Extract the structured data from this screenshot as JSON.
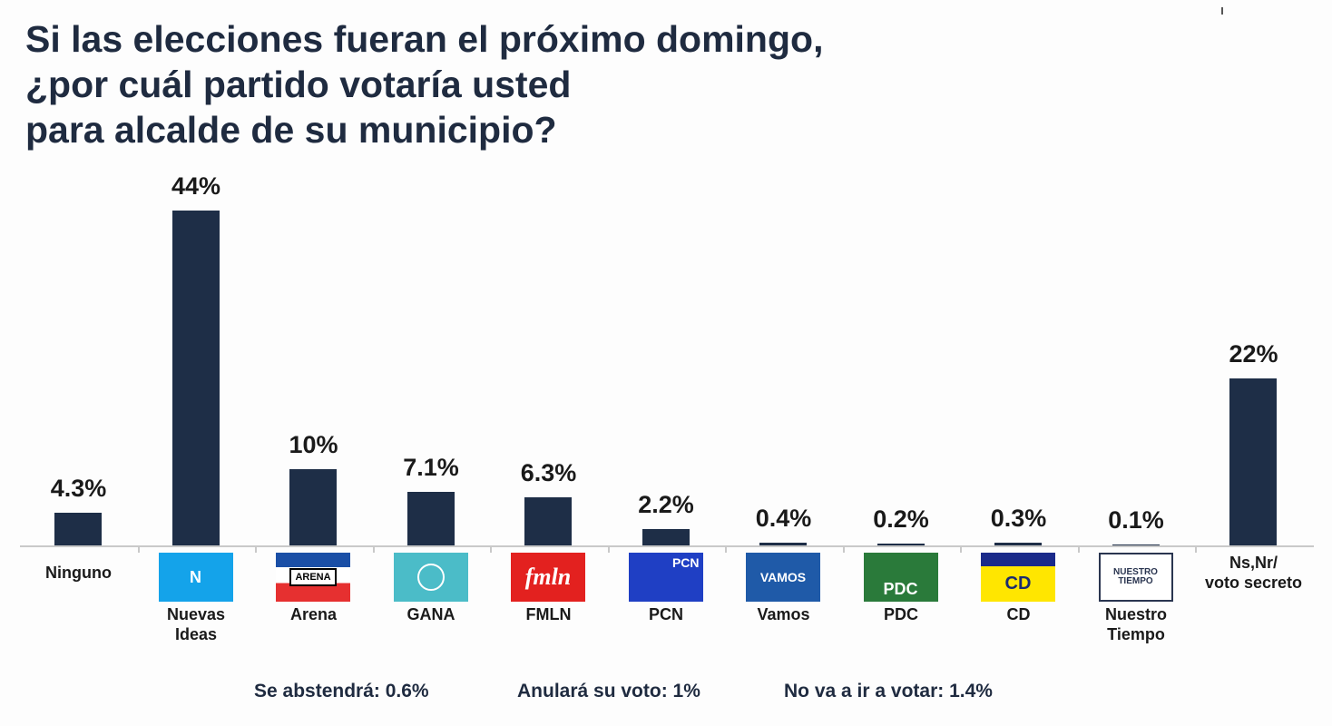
{
  "chart_data": {
    "type": "bar",
    "title": [
      "Si las elecciones fueran el próximo domingo,",
      "¿por cuál partido votaría usted",
      "para alcalde de su municipio?"
    ],
    "categories": [
      "Ninguno",
      "Nuevas Ideas",
      "Arena",
      "GANA",
      "FMLN",
      "PCN",
      "Vamos",
      "PDC",
      "CD",
      "Nuestro Tiempo",
      "Ns,Nr/ voto secreto"
    ],
    "values": [
      4.3,
      44,
      10,
      7.1,
      6.3,
      2.2,
      0.4,
      0.2,
      0.3,
      0.1,
      22
    ],
    "value_labels": [
      "4.3%",
      "44%",
      "10%",
      "7.1%",
      "6.3%",
      "2.2%",
      "0.4%",
      "0.2%",
      "0.3%",
      "0.1%",
      "22%"
    ],
    "label_lines": [
      [
        "Ninguno"
      ],
      [
        "Nuevas",
        "Ideas"
      ],
      [
        "Arena"
      ],
      [
        "GANA"
      ],
      [
        "FMLN"
      ],
      [
        "PCN"
      ],
      [
        "Vamos"
      ],
      [
        "PDC"
      ],
      [
        "CD"
      ],
      [
        "Nuestro",
        "Tiempo"
      ],
      [
        "Ns,Nr/",
        "voto secreto"
      ]
    ],
    "logos": [
      null,
      {
        "text": "N",
        "bg": "#14a3ea",
        "fg": "#ffffff"
      },
      {
        "text": "ARENA",
        "bg": "#ffffff",
        "fg": "#000000"
      },
      {
        "text": "GANA",
        "bg": "#4bbcc8",
        "fg": "#ffffff"
      },
      {
        "text": "fmln",
        "bg": "#e3211f",
        "fg": "#ffffff"
      },
      {
        "text": "PCN",
        "bg": "#1f3fc4",
        "fg": "#ffffff"
      },
      {
        "text": "VAMOS",
        "bg": "#1f5aa8",
        "fg": "#ffffff"
      },
      {
        "text": "PDC",
        "bg": "#2a7a3a",
        "fg": "#ffffff"
      },
      {
        "text": "CD",
        "bg": "#ffe600",
        "fg": "#1a2a70"
      },
      {
        "text": "NUESTRO TIEMPO",
        "bg": "#ffffff",
        "fg": "#2a3550"
      },
      null
    ],
    "ylim": [
      0,
      46
    ],
    "bar_color": "#1e2e47",
    "grid": false,
    "footnotes": [
      "Se abstendrá: 0.6%",
      "Anulará su voto: 1%",
      "No va a ir a votar: 1.4%"
    ]
  }
}
